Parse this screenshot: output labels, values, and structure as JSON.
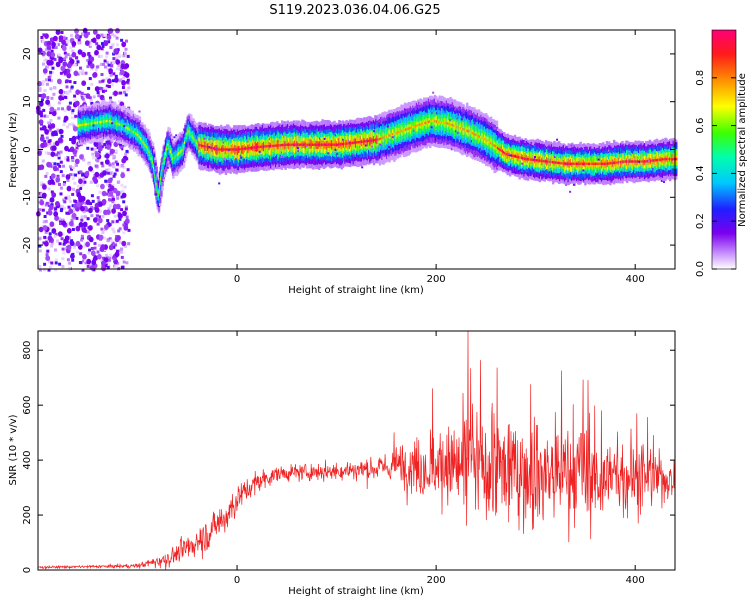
{
  "title": "S119.2023.036.04.06.G25",
  "colors": {
    "snr_line": "#ee2222",
    "axis": "#000000",
    "background": "#ffffff"
  },
  "chart_data": [
    {
      "type": "heatmap",
      "xlabel": "Height of straight line (km)",
      "ylabel": "Frequency (Hz)",
      "xlim": [
        -200,
        440
      ],
      "ylim": [
        -25,
        25
      ],
      "x_ticks": [
        "0",
        "200",
        "400"
      ],
      "y_ticks": [
        "-20",
        "-10",
        "0",
        "10",
        "20"
      ],
      "colorbar": {
        "label": "Normalized spectral amplitude",
        "range": [
          0,
          1
        ],
        "ticks": [
          "0.0",
          "0.2",
          "0.4",
          "0.6",
          "0.8"
        ],
        "colormap": "rainbow (white/purple low to red/magenta high)"
      },
      "ridge": {
        "x": [
          -160,
          -130,
          -115,
          -100,
          -90,
          -85,
          -80,
          -75,
          -70,
          -65,
          -60,
          -55,
          -50,
          -40,
          -20,
          0,
          20,
          50,
          80,
          100,
          120,
          140,
          160,
          180,
          195,
          210,
          230,
          250,
          270,
          290,
          310,
          330,
          350,
          370,
          390,
          410,
          430,
          440
        ],
        "y": [
          5,
          6,
          5,
          3,
          0,
          -3,
          -10,
          -3,
          1,
          -2,
          -1,
          0,
          4,
          1,
          0,
          0,
          0.5,
          1,
          1,
          1,
          1.5,
          2,
          3.5,
          5,
          6,
          5.5,
          4,
          2,
          -1,
          -2,
          -2.5,
          -3,
          -3,
          -3,
          -2.5,
          -2.5,
          -2,
          -2
        ]
      },
      "noise_region_x": [
        -200,
        -110
      ]
    },
    {
      "type": "line",
      "xlabel": "Height of straight line (km)",
      "ylabel": "SNR (10 * v/v)",
      "xlim": [
        -200,
        440
      ],
      "ylim": [
        0,
        870
      ],
      "x_ticks": [
        "0",
        "200",
        "400"
      ],
      "y_ticks": [
        "0",
        "200",
        "400",
        "600",
        "800"
      ],
      "series": [
        {
          "trend_x": [
            -200,
            -150,
            -100,
            -70,
            -50,
            -30,
            -10,
            0,
            20,
            40,
            60,
            100,
            140,
            160,
            200,
            240,
            280,
            320,
            360,
            400,
            440
          ],
          "trend_mean": [
            10,
            12,
            15,
            40,
            80,
            130,
            200,
            260,
            320,
            350,
            355,
            360,
            370,
            380,
            380,
            370,
            360,
            345,
            340,
            335,
            330
          ],
          "trend_amplitude": [
            5,
            5,
            8,
            30,
            50,
            60,
            70,
            60,
            40,
            30,
            30,
            35,
            50,
            70,
            150,
            220,
            230,
            220,
            180,
            130,
            60
          ],
          "peak": [
            232,
            870
          ]
        }
      ]
    }
  ]
}
